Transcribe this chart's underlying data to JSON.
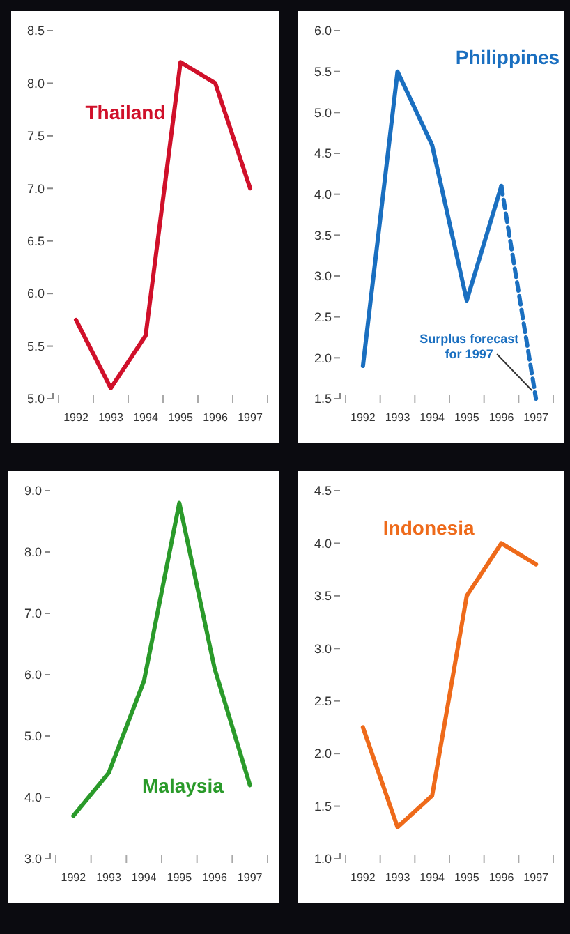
{
  "chart_data": [
    {
      "type": "line",
      "categories": [
        "1992",
        "1993",
        "1994",
        "1995",
        "1996",
        "1997"
      ],
      "ylim": [
        5,
        8.5
      ],
      "yticks": [
        {
          "value": 5,
          "label": "5.0"
        },
        {
          "value": 5.5,
          "label": "5.5"
        },
        {
          "value": 6,
          "label": "6.0"
        },
        {
          "value": 6.5,
          "label": "6.5"
        },
        {
          "value": 7,
          "label": "7.0"
        },
        {
          "value": 7.5,
          "label": "7.5"
        },
        {
          "value": 8,
          "label": "8.0"
        },
        {
          "value": 8.5,
          "label": "8.5"
        }
      ],
      "grid": false,
      "series": [
        {
          "name": "Thailand",
          "color": "#d0102a",
          "values": [
            5.75,
            5.1,
            5.6,
            8.2,
            8.0,
            7.0
          ]
        }
      ]
    },
    {
      "type": "line",
      "categories": [
        "1992",
        "1993",
        "1994",
        "1995",
        "1996",
        "1997"
      ],
      "ylim": [
        1.5,
        6
      ],
      "yticks": [
        {
          "value": 1.5,
          "label": "1.5"
        },
        {
          "value": 2,
          "label": "2.0"
        },
        {
          "value": 2.5,
          "label": "2.5"
        },
        {
          "value": 3,
          "label": "3.0"
        },
        {
          "value": 3.5,
          "label": "3.5"
        },
        {
          "value": 4,
          "label": "4.0"
        },
        {
          "value": 4.5,
          "label": "4.5"
        },
        {
          "value": 5,
          "label": "5.0"
        },
        {
          "value": 5.5,
          "label": "5.5"
        },
        {
          "value": 6,
          "label": "6.0"
        }
      ],
      "grid": false,
      "series": [
        {
          "name": "Philippines",
          "color": "#1a6fc0",
          "values": [
            1.9,
            5.5,
            4.6,
            2.7,
            4.1,
            null
          ]
        },
        {
          "color": "#1a6fc0",
          "line_style": "dashed",
          "values": [
            null,
            null,
            null,
            null,
            4.1,
            1.5
          ]
        }
      ],
      "annotations": [
        {
          "text": "Surplus forecast for 1997",
          "x": "1997",
          "y": 1.5
        }
      ]
    },
    {
      "type": "line",
      "categories": [
        "1992",
        "1993",
        "1994",
        "1995",
        "1996",
        "1997"
      ],
      "ylim": [
        3,
        9
      ],
      "yticks": [
        {
          "value": 3,
          "label": "3.0"
        },
        {
          "value": 4,
          "label": "4.0"
        },
        {
          "value": 5,
          "label": "5.0"
        },
        {
          "value": 6,
          "label": "6.0"
        },
        {
          "value": 7,
          "label": "7.0"
        },
        {
          "value": 8,
          "label": "8.0"
        },
        {
          "value": 9,
          "label": "9.0"
        }
      ],
      "grid": false,
      "series": [
        {
          "name": "Malaysia",
          "color": "#2a9a2a",
          "values": [
            3.7,
            4.4,
            5.9,
            8.8,
            6.1,
            4.2
          ]
        }
      ]
    },
    {
      "type": "line",
      "categories": [
        "1992",
        "1993",
        "1994",
        "1995",
        "1996",
        "1997"
      ],
      "ylim": [
        1,
        4.5
      ],
      "yticks": [
        {
          "value": 1,
          "label": "1.0"
        },
        {
          "value": 1.5,
          "label": "1.5"
        },
        {
          "value": 2,
          "label": "2.0"
        },
        {
          "value": 2.5,
          "label": "2.5"
        },
        {
          "value": 3,
          "label": "3.0"
        },
        {
          "value": 3.5,
          "label": "3.5"
        },
        {
          "value": 4,
          "label": "4.0"
        },
        {
          "value": 4.5,
          "label": "4.5"
        }
      ],
      "grid": false,
      "series": [
        {
          "name": "Indonesia",
          "color": "#ee6a1a",
          "values": [
            2.25,
            1.3,
            1.6,
            3.5,
            4.0,
            3.8
          ]
        }
      ]
    }
  ]
}
